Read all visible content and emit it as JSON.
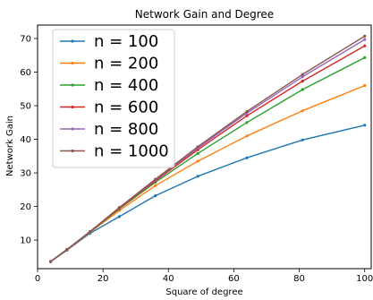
{
  "chart_data": {
    "type": "line",
    "title": "Network Gain and Degree",
    "xlabel": "Square of degree",
    "ylabel": "Network Gain",
    "xlim": [
      0,
      102
    ],
    "ylim": [
      1.5,
      74
    ],
    "xticks": [
      0,
      20,
      40,
      60,
      80,
      100
    ],
    "yticks": [
      10,
      20,
      30,
      40,
      50,
      60,
      70
    ],
    "grid": false,
    "legend_position": "top-left",
    "x": [
      4,
      9,
      16,
      25,
      36,
      49,
      64,
      81,
      100
    ],
    "series": [
      {
        "name": "n = 100",
        "color": "#1f77b4",
        "values": [
          3.6,
          7.0,
          12.0,
          17.0,
          23.2,
          29.0,
          34.5,
          39.8,
          44.2
        ]
      },
      {
        "name": "n = 200",
        "color": "#ff7f0e",
        "values": [
          3.6,
          7.1,
          12.3,
          18.8,
          26.2,
          33.5,
          41.0,
          48.5,
          56.0
        ]
      },
      {
        "name": "n = 400",
        "color": "#2ca02c",
        "values": [
          3.6,
          7.2,
          12.4,
          19.3,
          27.2,
          35.8,
          45.0,
          54.8,
          64.3
        ]
      },
      {
        "name": "n = 600",
        "color": "#d62728",
        "values": [
          3.6,
          7.2,
          12.5,
          19.5,
          27.6,
          36.9,
          47.0,
          57.3,
          67.8
        ]
      },
      {
        "name": "n = 800",
        "color": "#9467bd",
        "values": [
          3.6,
          7.2,
          12.5,
          19.6,
          27.9,
          37.4,
          47.8,
          58.6,
          69.7
        ]
      },
      {
        "name": "n = 1000",
        "color": "#8c564b",
        "values": [
          3.6,
          7.2,
          12.5,
          19.7,
          28.1,
          37.8,
          48.3,
          59.3,
          70.7
        ]
      }
    ]
  }
}
